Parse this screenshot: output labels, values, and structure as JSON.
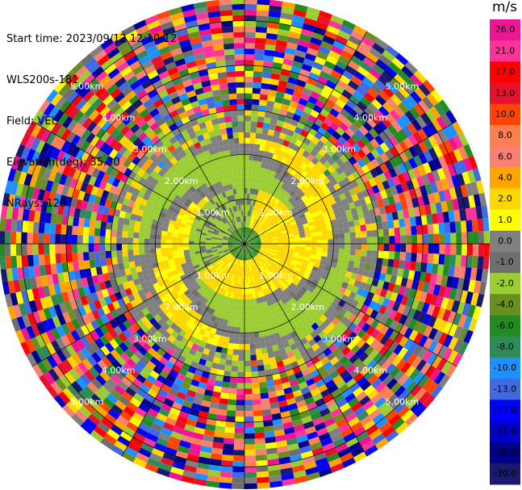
{
  "header": {
    "start_time": "Start time: 2023/09/12 12:10:12",
    "instrument": "WLS200s-181",
    "field": "Field: VEL",
    "elevation": "Elevation(deg): 35.30",
    "nrays": "NRays: 120"
  },
  "colorbar": {
    "units": "m/s",
    "labels": [
      "26.0",
      "21.0",
      "17.0",
      "13.0",
      "10.0",
      "8.0",
      "6.0",
      "4.0",
      "2.0",
      "1.0",
      "0.0",
      "-1.0",
      "-2.0",
      "-4.0",
      "-6.0",
      "-8.0",
      "-10.0",
      "-13.0",
      "-17.0",
      "-21.0",
      "-26.0",
      "-30.0"
    ],
    "colors": [
      "#ee1493",
      "#ff3399",
      "#ff0000",
      "#e8112d",
      "#ff4500",
      "#ff7f50",
      "#fa8072",
      "#ffa500",
      "#ffd700",
      "#ffff00",
      "#808080",
      "#6e6e6e",
      "#9acd32",
      "#6b8e23",
      "#228b22",
      "#2e8b57",
      "#1e90ff",
      "#4169e1",
      "#0000ff",
      "#0000cd",
      "#00008b",
      "#191970"
    ]
  },
  "chart_data": {
    "type": "heatmap",
    "projection": "polar PPI",
    "n_rays": 120,
    "range_rings_km": [
      1.0,
      2.0,
      3.0,
      4.0,
      5.0
    ],
    "ring_labels": [
      "1.00km",
      "2.00km",
      "3.00km",
      "4.00km",
      "5.00km"
    ],
    "max_range_km": 5.5,
    "spokes_deg": [
      0,
      30,
      60,
      90,
      120,
      150,
      180,
      210,
      240,
      270,
      300,
      330
    ],
    "pattern": {
      "inner_ring": "yellow positive velocities (2.0-4.0) around center, green negative (-1.0 to -4.0) on lower-right half",
      "mid_ring": "gray near-zero (0.0 to -1.0) with yellow-green spiral bands",
      "outer_region": "noisy multi-color values beyond ~3 km"
    }
  }
}
